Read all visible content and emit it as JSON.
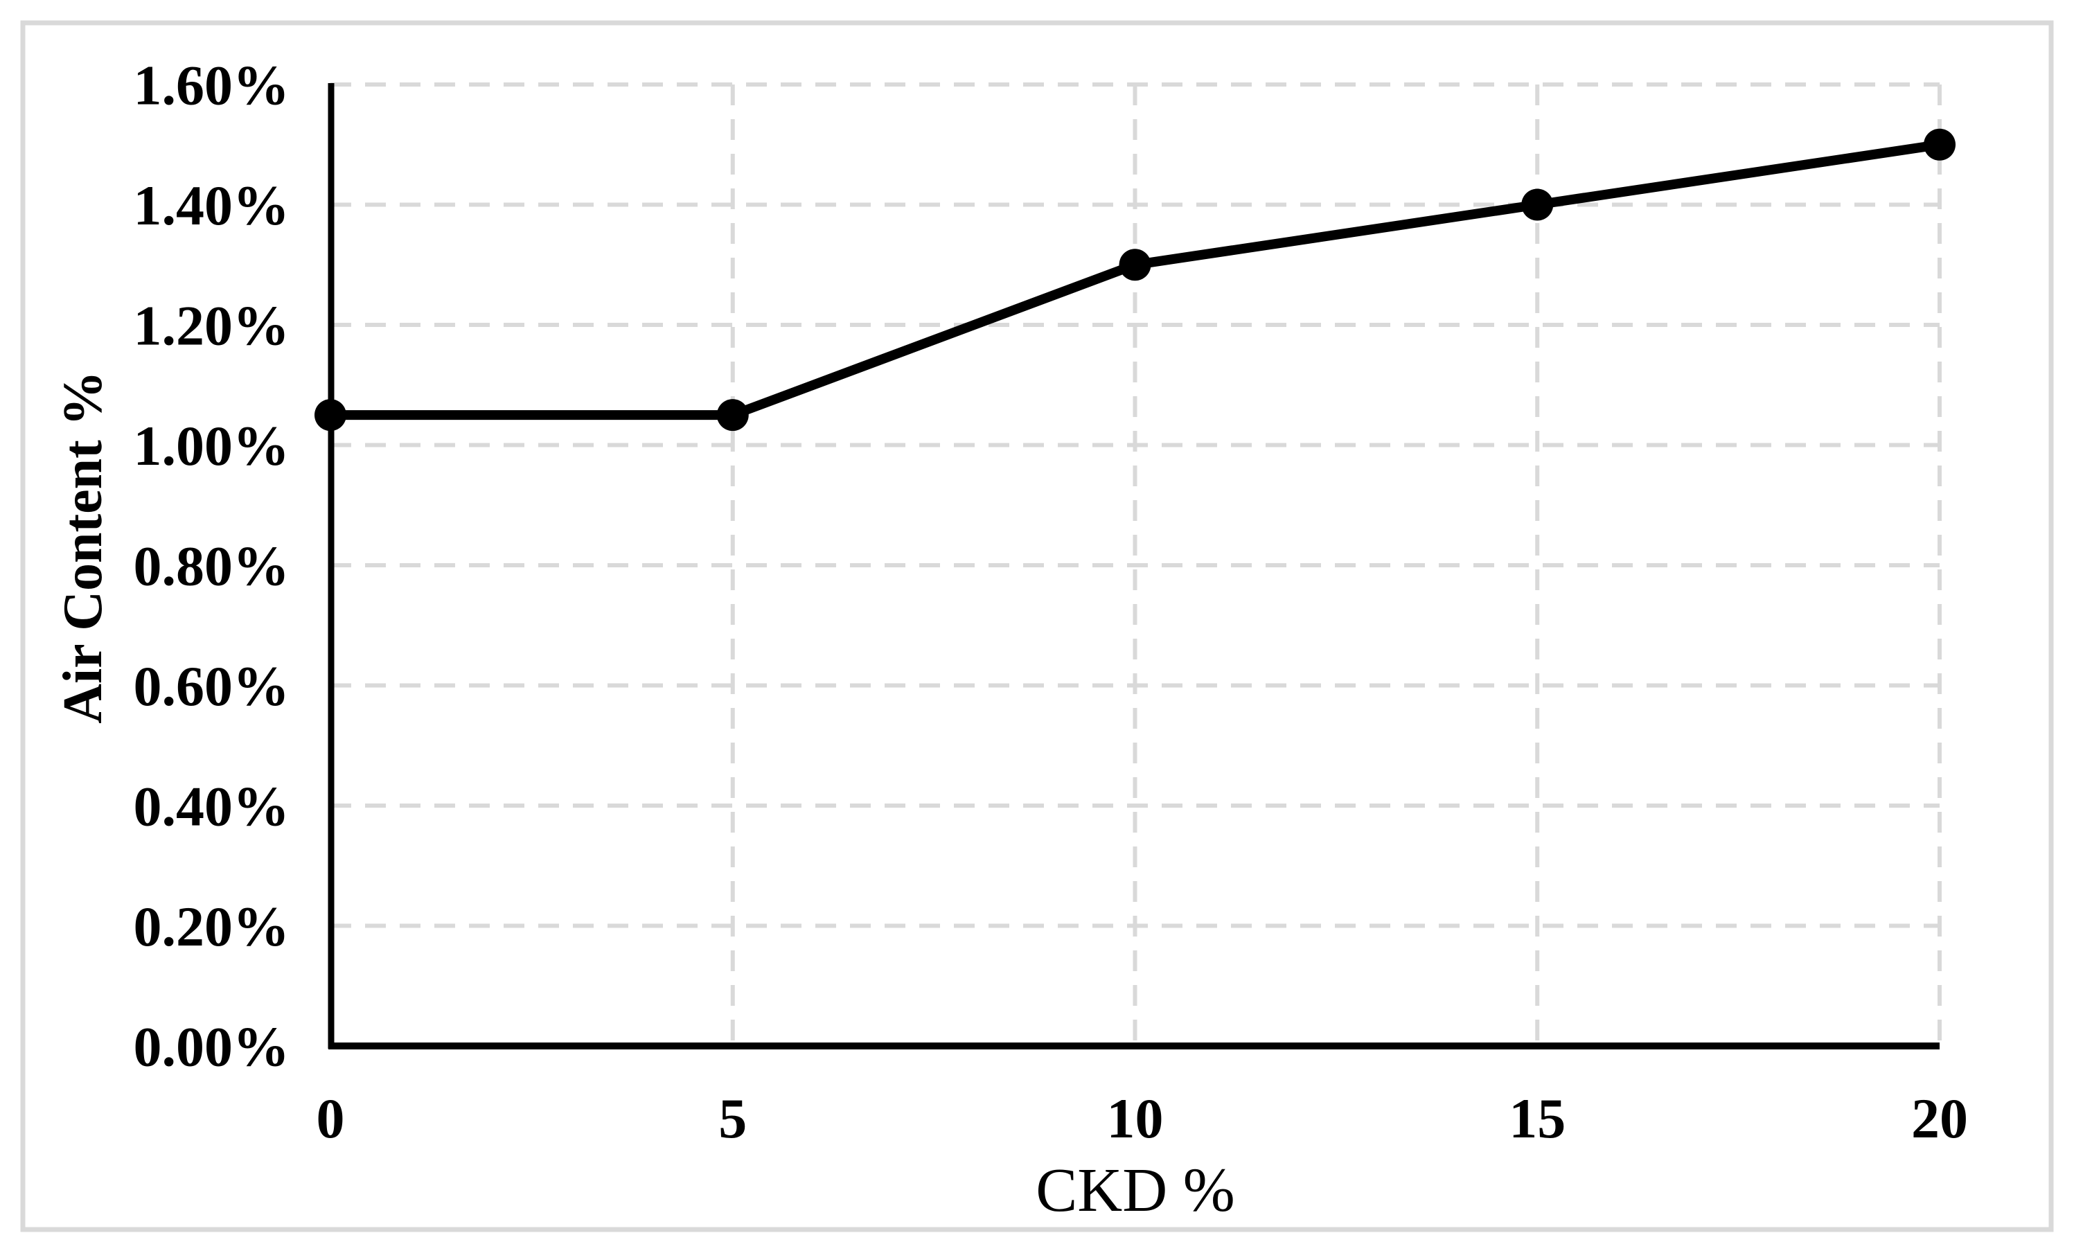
{
  "chart_data": {
    "type": "line",
    "title": "",
    "xlabel": "CKD %",
    "ylabel": "Air Content %",
    "x": [
      0,
      5,
      10,
      15,
      20
    ],
    "series": [
      {
        "name": "Air Content %",
        "values": [
          1.05,
          1.05,
          1.3,
          1.4,
          1.5
        ]
      }
    ],
    "xlim": [
      0,
      20
    ],
    "ylim": [
      0,
      1.6
    ],
    "xticks": {
      "values": [
        0,
        5,
        10,
        15,
        20
      ],
      "labels": [
        "0",
        "5",
        "10",
        "15",
        "20"
      ]
    },
    "yticks": {
      "values": [
        0,
        0.2,
        0.4,
        0.6,
        0.8,
        1.0,
        1.2,
        1.4,
        1.6
      ],
      "labels": [
        "0.00%",
        "0.20%",
        "0.40%",
        "0.60%",
        "0.80%",
        "1.00%",
        "1.20%",
        "1.40%",
        "1.60%"
      ]
    },
    "grid": "dashed-both-axes",
    "legend": "none",
    "marker": "filled-circle",
    "colors": {
      "line": "#000000",
      "marker": "#000000",
      "axis": "#000000",
      "gridline": "#d9d9d9",
      "border": "#d9d9d9",
      "text": "#000000",
      "background": "#ffffff"
    }
  }
}
